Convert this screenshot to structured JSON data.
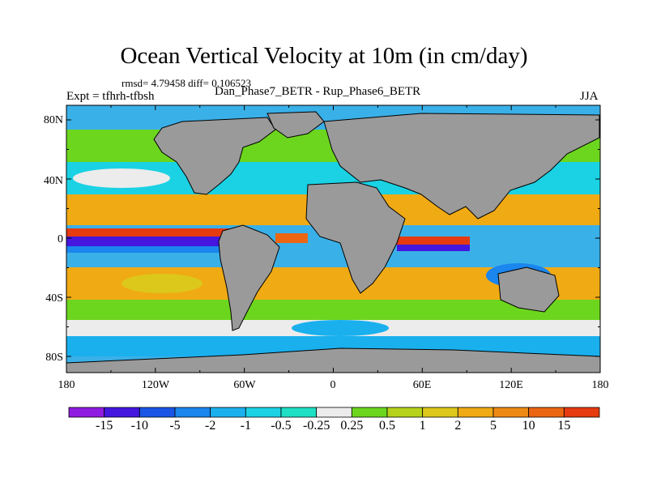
{
  "title": "Ocean Vertical Velocity at 10m (in cm/day)",
  "stats": "rmsd= 4.79458 diff= 0.106523",
  "expt": "Expt = tfhrh-tfbsh",
  "center_label": "Dan_Phase7_BETR - Rup_Phase6_BETR",
  "season": "JJA",
  "lat_ticks": [
    "80N",
    "40N",
    "0",
    "40S",
    "80S"
  ],
  "lon_ticks": [
    "180",
    "120W",
    "60W",
    "0",
    "60E",
    "120E",
    "180"
  ],
  "colorbar": {
    "labels": [
      "-15",
      "-10",
      "-5",
      "-2",
      "-1",
      "-0.5",
      "-0.25",
      "0.25",
      "0.5",
      "1",
      "2",
      "5",
      "10",
      "15"
    ],
    "colors": [
      "#8f1ce0",
      "#4416de",
      "#1a55e6",
      "#1a86ee",
      "#1ab0ee",
      "#1ad2e4",
      "#1ee0c4",
      "#ececec",
      "#6cd61e",
      "#b6d21a",
      "#dcc81a",
      "#f0aa14",
      "#ee8a14",
      "#ec6612",
      "#e63a10"
    ]
  },
  "land_color": "#9a9a9a"
}
